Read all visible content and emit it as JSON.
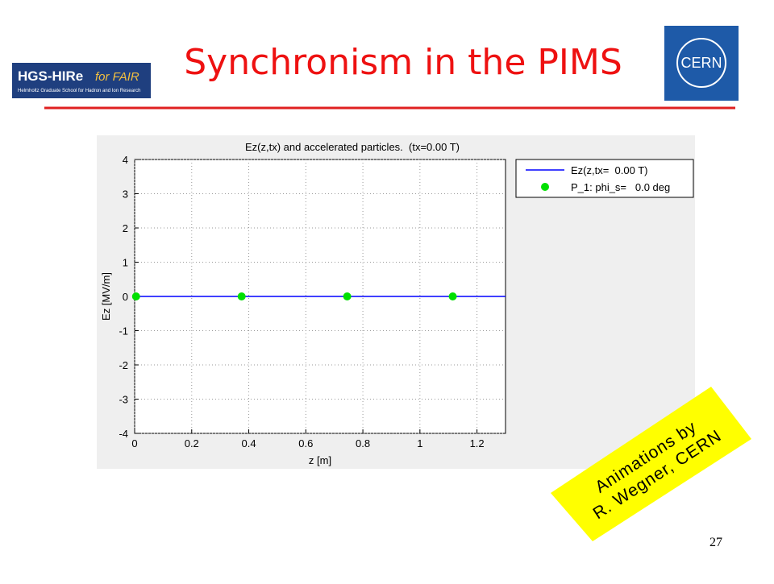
{
  "slide": {
    "title": "Synchronism in the PIMS",
    "left_logo": {
      "name": "HGS-HIRe",
      "suffix": "for FAIR",
      "subtitle": "Helmholtz Graduate School for Hadron and Ion Research"
    },
    "right_logo": "CERN",
    "note": [
      "Animations by",
      "R. Wegner, CERN"
    ],
    "page_number": "27"
  },
  "chart_data": {
    "type": "line",
    "title": "Ez(z,tx) and accelerated particles.  (tx=0.00 T)",
    "x_label": "z [m]",
    "y_label": "Ez [MV/m]",
    "xlim": [
      0,
      1.3
    ],
    "ylim": [
      -4,
      4
    ],
    "xticks": [
      0,
      0.2,
      0.4,
      0.6,
      0.8,
      1,
      1.2
    ],
    "yticks": [
      -4,
      -3,
      -2,
      -1,
      0,
      1,
      2,
      3,
      4
    ],
    "grid": true,
    "legend": "outside right",
    "series": [
      {
        "name": "Ez(z,tx=  0.00 T)",
        "type": "line",
        "color": "#0000ff",
        "x": [
          0,
          1.3
        ],
        "values": [
          0,
          0
        ]
      },
      {
        "name": "P_1: phi_s=   0.0 deg",
        "type": "scatter",
        "color": "#00e000",
        "x": [
          0.005,
          0.375,
          0.745,
          1.115
        ],
        "values": [
          0,
          0,
          0,
          0
        ]
      }
    ]
  }
}
